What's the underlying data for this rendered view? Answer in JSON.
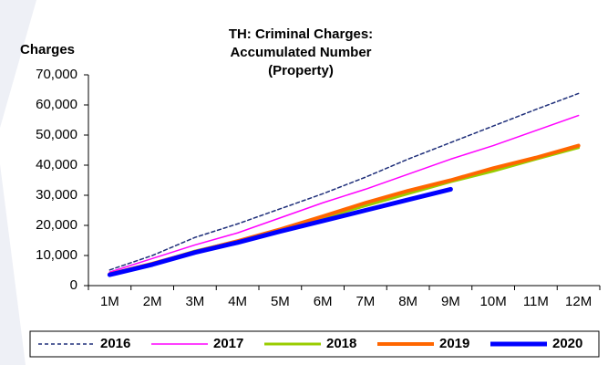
{
  "chart_data": {
    "type": "line",
    "title": [
      "TH: Criminal Charges:",
      "Accumulated Number",
      "(Property)"
    ],
    "y_label": "Charges",
    "categories": [
      "1M",
      "2M",
      "3M",
      "4M",
      "5M",
      "6M",
      "7M",
      "8M",
      "9M",
      "10M",
      "11M",
      "12M"
    ],
    "series": [
      {
        "name": "2016",
        "color": "#1f2f7a",
        "width": 1.5,
        "dashed": true,
        "values": [
          5200,
          10000,
          16000,
          20500,
          25500,
          30500,
          36000,
          42000,
          47500,
          53000,
          58500,
          63800
        ]
      },
      {
        "name": "2017",
        "color": "#ff00ff",
        "width": 1.5,
        "dashed": false,
        "values": [
          4500,
          9000,
          13500,
          17500,
          22500,
          27500,
          32000,
          37000,
          42000,
          46500,
          51500,
          56500
        ]
      },
      {
        "name": "2018",
        "color": "#99cc00",
        "width": 3,
        "dashed": false,
        "values": [
          3700,
          7200,
          11500,
          14800,
          18500,
          22500,
          26500,
          30500,
          34500,
          38000,
          42000,
          45800
        ]
      },
      {
        "name": "2019",
        "color": "#ff6600",
        "width": 4,
        "dashed": false,
        "values": [
          3800,
          7300,
          11200,
          14800,
          18700,
          23000,
          27500,
          31500,
          35000,
          39000,
          42500,
          46500
        ]
      },
      {
        "name": "2020",
        "color": "#0000ff",
        "width": 5,
        "dashed": false,
        "values": [
          3600,
          7000,
          11000,
          14300,
          18000,
          21500,
          25000,
          28500,
          32000,
          null,
          null,
          null
        ]
      }
    ],
    "ylim": [
      0,
      70000
    ],
    "yticks": [
      0,
      {
        "value": 10000,
        "label": "10,000"
      },
      {
        "value": 20000,
        "label": "20,000"
      },
      {
        "value": 30000,
        "label": "30,000"
      },
      {
        "value": 40000,
        "label": "40,000"
      },
      {
        "value": 50000,
        "label": "50,000"
      },
      {
        "value": 60000,
        "label": "60,000"
      },
      {
        "value": 70000,
        "label": "70,000"
      }
    ]
  }
}
